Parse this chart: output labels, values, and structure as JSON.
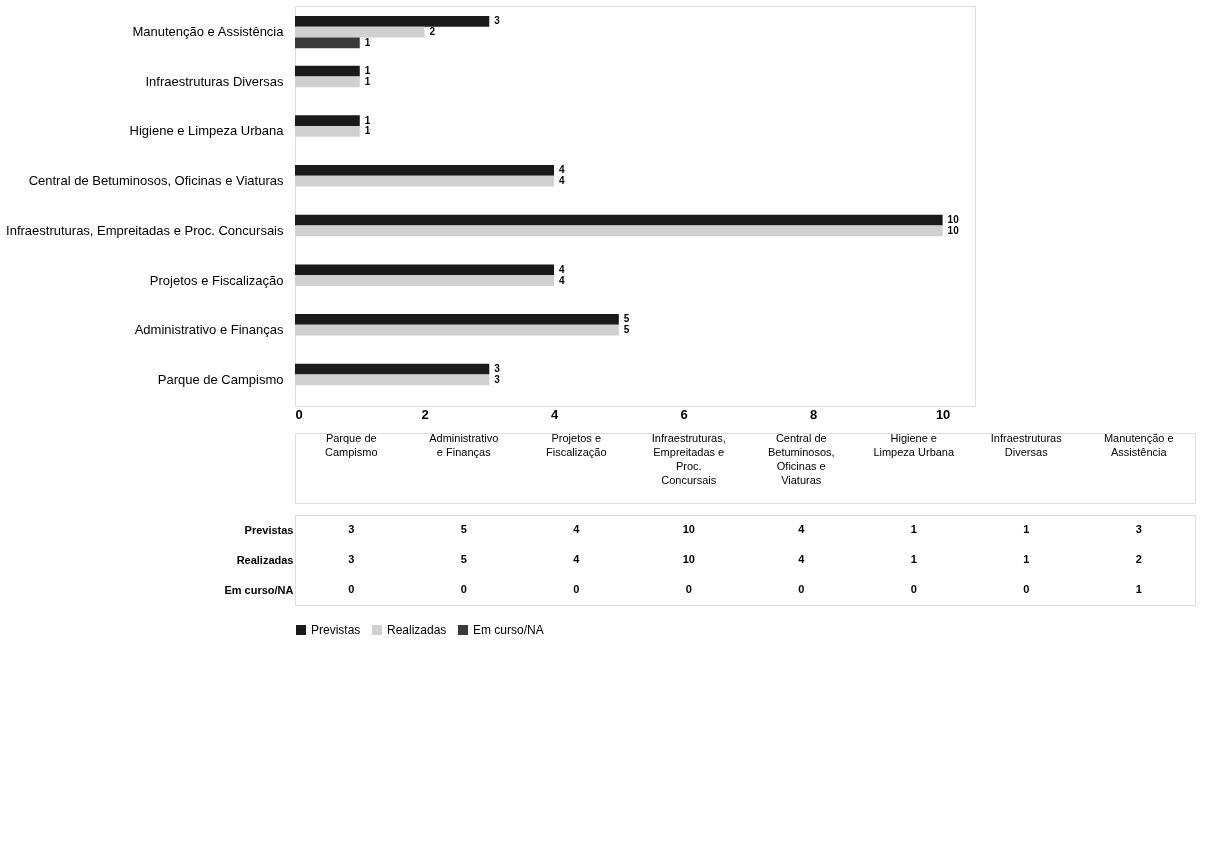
{
  "chart_data": [
    {
      "type": "bar",
      "orientation": "horizontal",
      "categories": [
        "Manutenção e Assistência",
        "Infraestruturas Diversas",
        "Higiene e Limpeza Urbana",
        "Central de Betuminosos, Oficinas e Viaturas",
        "Infraestruturas, Empreitadas e Proc. Concursais",
        "Projetos e Fiscalização",
        "Administrativo e Finanças",
        "Parque de Campismo"
      ],
      "series": [
        {
          "name": "Previstas",
          "color": "#1a1a1a",
          "values": [
            3,
            1,
            1,
            4,
            10,
            4,
            5,
            3
          ],
          "value_labels": [
            "3",
            "1",
            "1",
            "4",
            "10",
            "4",
            "5",
            "3"
          ]
        },
        {
          "name": "Realizadas",
          "color": "#d0d0d0",
          "values": [
            2,
            1,
            1,
            4,
            10,
            4,
            5,
            3
          ],
          "value_labels": [
            "2",
            "1",
            "1",
            "4",
            "10",
            "4",
            "5",
            "3"
          ]
        },
        {
          "name": "Em curso/NA",
          "color": "#3a3a3a",
          "values": [
            1,
            0,
            0,
            0,
            0,
            0,
            0,
            0
          ],
          "value_labels": [
            "1",
            null,
            null,
            null,
            null,
            null,
            null,
            null
          ]
        }
      ],
      "xlim": [
        0,
        10.5
      ],
      "xticks": [
        0,
        2,
        4,
        6,
        8,
        10
      ],
      "grid": false,
      "legend": "bottom"
    },
    {
      "type": "other",
      "categories": [
        "Parque de Campismo",
        "Administrativo e Finanças",
        "Projetos e Fiscalização",
        "Infraestruturas, Empreitadas e Proc. Concursais",
        "Central de Betuminosos, Oficinas e Viaturas",
        "Higiene e Limpeza Urbana",
        "Infraestruturas Diversas",
        "Manutenção e Assistência"
      ],
      "series": [
        {
          "name": "Previstas",
          "values": [
            3,
            5,
            4,
            10,
            4,
            1,
            1,
            3
          ]
        },
        {
          "name": "Realizadas",
          "values": [
            3,
            5,
            4,
            10,
            4,
            1,
            1,
            2
          ]
        },
        {
          "name": "Em curso/NA",
          "values": [
            0,
            0,
            0,
            0,
            0,
            0,
            0,
            1
          ]
        }
      ],
      "data_labels": true
    }
  ]
}
